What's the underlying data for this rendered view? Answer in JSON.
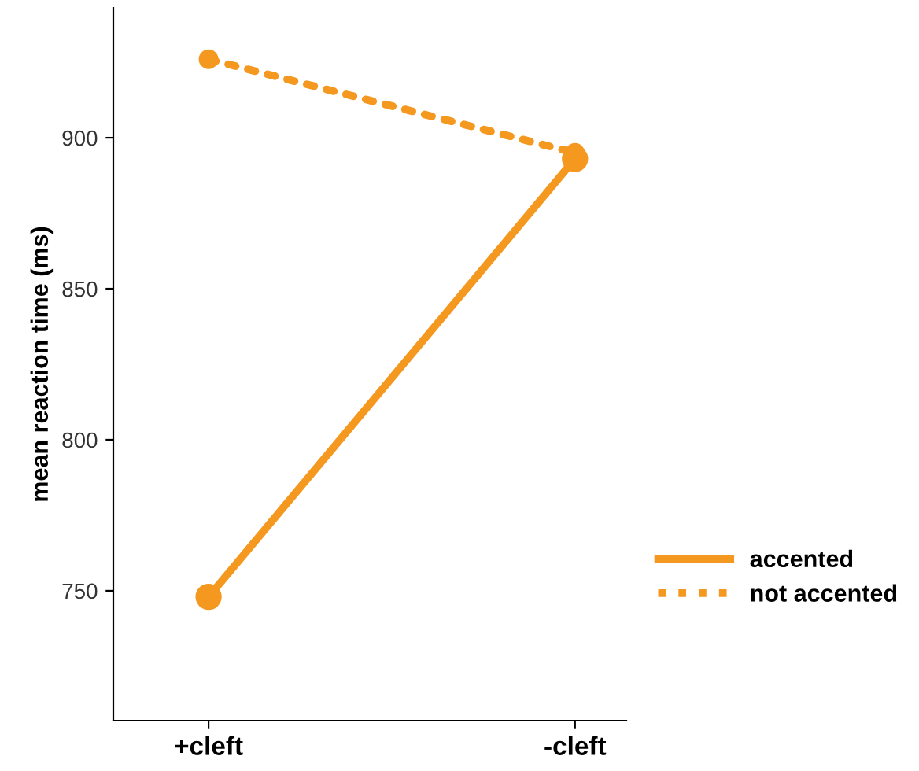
{
  "chart_data": {
    "type": "line",
    "ylabel": "mean reaction time (ms)",
    "categories": [
      "+cleft",
      "-cleft"
    ],
    "series": [
      {
        "name": "accented",
        "color": "#f4981f",
        "values": [
          748,
          893
        ],
        "line_style": "solid"
      },
      {
        "name": "not accented",
        "color": "#f4981f",
        "values": [
          926,
          895
        ],
        "line_style": "dotted"
      }
    ],
    "ylim": [
      707,
      943
    ],
    "yticks": [
      750,
      800,
      850,
      900
    ],
    "marker": "circle",
    "legend": "right",
    "grid": false
  }
}
